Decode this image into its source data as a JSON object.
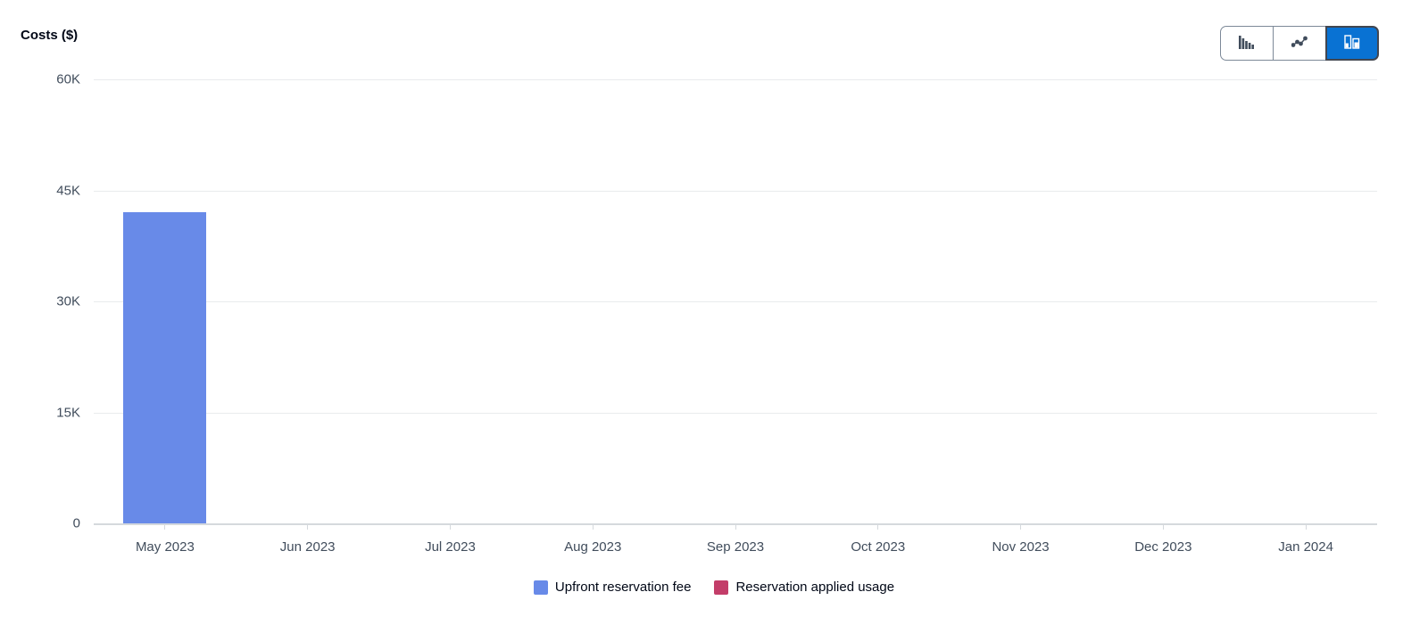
{
  "title": "Costs ($)",
  "toolbar": {
    "chart_type_options": [
      {
        "id": "bar",
        "icon": "bar-chart-icon",
        "selected": false
      },
      {
        "id": "line",
        "icon": "line-chart-icon",
        "selected": false
      },
      {
        "id": "stacked-bar",
        "icon": "stacked-bar-chart-icon",
        "selected": true
      }
    ]
  },
  "chart_data": {
    "type": "bar",
    "stacked": true,
    "title": "Costs ($)",
    "xlabel": "",
    "ylabel": "Costs ($)",
    "categories": [
      "May 2023",
      "Jun 2023",
      "Jul 2023",
      "Aug 2023",
      "Sep 2023",
      "Oct 2023",
      "Nov 2023",
      "Dec 2023",
      "Jan 2024"
    ],
    "series": [
      {
        "name": "Upfront reservation fee",
        "color": "#688AE8",
        "values": [
          42000,
          0,
          0,
          0,
          0,
          0,
          0,
          0,
          0
        ]
      },
      {
        "name": "Reservation applied usage",
        "color": "#C33D69",
        "values": [
          0,
          0,
          0,
          0,
          0,
          0,
          0,
          0,
          0
        ]
      }
    ],
    "ylim": [
      0,
      60000
    ],
    "yticks": [
      {
        "label": "60K",
        "value": 60000
      },
      {
        "label": "45K",
        "value": 45000
      },
      {
        "label": "30K",
        "value": 30000
      },
      {
        "label": "15K",
        "value": 15000
      },
      {
        "label": "0",
        "value": 0
      }
    ],
    "grid": true,
    "legend_position": "bottom"
  },
  "legend": {
    "items": [
      {
        "label": "Upfront reservation fee",
        "color": "#688AE8"
      },
      {
        "label": "Reservation applied usage",
        "color": "#C33D69"
      }
    ]
  },
  "colors": {
    "accent": "#0972D3",
    "series_blue": "#688AE8",
    "series_red": "#C33D69",
    "gridline": "#E9EBED",
    "axis_line": "#D5D9DD",
    "axis_text": "#414D5C",
    "title_text": "#000716"
  }
}
